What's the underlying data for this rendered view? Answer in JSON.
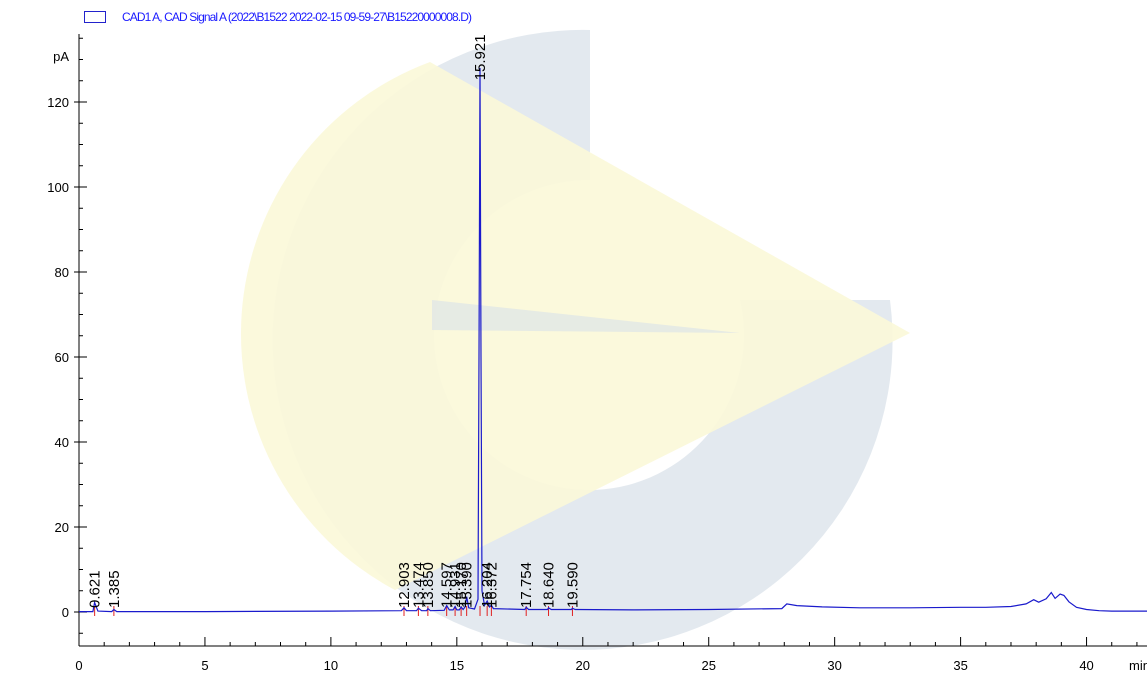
{
  "legend": {
    "label": "CAD1 A, CAD Signal A (2022\\B1522 2022-02-15 09-59-27\\B15220000008.D)",
    "color": "#2222cc"
  },
  "watermark": {
    "icon": "company-logo-watermark-icon",
    "colors": [
      "#d9e1ea",
      "#fbf8d8"
    ]
  },
  "chart_data": {
    "type": "line",
    "title": "",
    "ylabel": "pA",
    "xlabel": "min",
    "xlim": [
      0,
      42.4
    ],
    "ylim": [
      -8,
      136
    ],
    "x_ticks": [
      0,
      5,
      10,
      15,
      20,
      25,
      30,
      35,
      40
    ],
    "y_ticks": [
      0,
      20,
      40,
      60,
      80,
      100,
      120
    ],
    "x_tick_labels": [
      "0",
      "5",
      "10",
      "15",
      "20",
      "25",
      "30",
      "35",
      "40"
    ],
    "y_tick_labels": [
      "0",
      "20",
      "40",
      "60",
      "80",
      "100",
      "120"
    ],
    "grid": false,
    "line_color": "#1a1acc",
    "series": [
      {
        "name": "CAD1 A, CAD Signal A",
        "baseline_points": [
          [
            0,
            0.1
          ],
          [
            0.55,
            0.1
          ],
          [
            0.621,
            2.2
          ],
          [
            0.75,
            0.2
          ],
          [
            1.3,
            0.1
          ],
          [
            1.385,
            0.6
          ],
          [
            1.5,
            0.1
          ],
          [
            5,
            0.1
          ],
          [
            10,
            0.2
          ],
          [
            12.8,
            0.3
          ],
          [
            12.903,
            1.0
          ],
          [
            13.0,
            0.3
          ],
          [
            13.4,
            0.3
          ],
          [
            13.474,
            0.9
          ],
          [
            13.6,
            0.3
          ],
          [
            13.8,
            0.3
          ],
          [
            13.85,
            0.8
          ],
          [
            13.95,
            0.3
          ],
          [
            14.5,
            0.4
          ],
          [
            14.597,
            1.5
          ],
          [
            14.7,
            0.5
          ],
          [
            14.85,
            0.5
          ],
          [
            14.931,
            1.3
          ],
          [
            15.0,
            0.5
          ],
          [
            15.1,
            0.5
          ],
          [
            15.17,
            1.2
          ],
          [
            15.25,
            0.6
          ],
          [
            15.33,
            1.2
          ],
          [
            15.39,
            3.6
          ],
          [
            15.47,
            1.0
          ],
          [
            15.7,
            0.7
          ],
          [
            15.84,
            3.0
          ],
          [
            15.88,
            60
          ],
          [
            15.921,
            128
          ],
          [
            15.96,
            60
          ],
          [
            16.0,
            5
          ],
          [
            16.1,
            1.6
          ],
          [
            16.204,
            2.6
          ],
          [
            16.3,
            1.2
          ],
          [
            16.372,
            1.6
          ],
          [
            16.45,
            0.8
          ],
          [
            17.7,
            0.6
          ],
          [
            17.754,
            1.1
          ],
          [
            17.85,
            0.6
          ],
          [
            18.6,
            0.6
          ],
          [
            18.64,
            1.0
          ],
          [
            18.75,
            0.6
          ],
          [
            19.55,
            0.6
          ],
          [
            19.59,
            0.9
          ],
          [
            19.7,
            0.6
          ],
          [
            22,
            0.5
          ],
          [
            25,
            0.6
          ],
          [
            27.9,
            0.8
          ],
          [
            28.1,
            1.9
          ],
          [
            28.5,
            1.5
          ],
          [
            29.5,
            1.2
          ],
          [
            31,
            1.0
          ],
          [
            33,
            1.0
          ],
          [
            35,
            1.1
          ],
          [
            36,
            1.1
          ],
          [
            37,
            1.3
          ],
          [
            37.6,
            1.9
          ],
          [
            37.9,
            2.9
          ],
          [
            38.1,
            2.3
          ],
          [
            38.4,
            3.1
          ],
          [
            38.6,
            4.6
          ],
          [
            38.75,
            3.2
          ],
          [
            38.95,
            4.2
          ],
          [
            39.1,
            3.9
          ],
          [
            39.3,
            2.4
          ],
          [
            39.6,
            1.1
          ],
          [
            40.0,
            0.6
          ],
          [
            40.5,
            0.3
          ],
          [
            41.0,
            0.2
          ],
          [
            42.4,
            0.2
          ]
        ]
      }
    ],
    "peaks": [
      {
        "rt": "0.621",
        "x": 0.621
      },
      {
        "rt": "1.385",
        "x": 1.385
      },
      {
        "rt": "12.903",
        "x": 12.903
      },
      {
        "rt": "13.474",
        "x": 13.474
      },
      {
        "rt": "13.850",
        "x": 13.85
      },
      {
        "rt": "14.597",
        "x": 14.597
      },
      {
        "rt": "14.931",
        "x": 14.931
      },
      {
        "rt": "15.170",
        "x": 15.17
      },
      {
        "rt": "15.390",
        "x": 15.39
      },
      {
        "rt": "15.921",
        "x": 15.921,
        "top": true
      },
      {
        "rt": "16.204",
        "x": 16.204
      },
      {
        "rt": "16.372",
        "x": 16.372
      },
      {
        "rt": "17.754",
        "x": 17.754
      },
      {
        "rt": "18.640",
        "x": 18.64
      },
      {
        "rt": "19.590",
        "x": 19.59
      }
    ]
  }
}
